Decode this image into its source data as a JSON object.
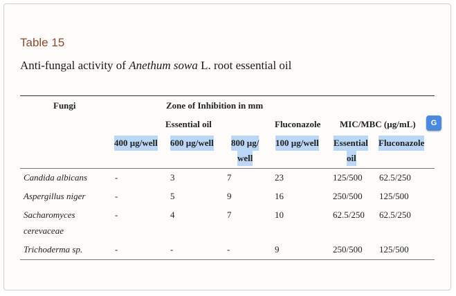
{
  "table": {
    "label": "Table 15",
    "caption_pre": "Anti-fungal activity of ",
    "caption_italic": "Anethum sowa",
    "caption_post": " L. root essential oil"
  },
  "headers": {
    "fungi": "Fungi",
    "zone": "Zone of Inhibition in mm",
    "essential_oil": "Essential oil",
    "fluconazole": "Fluconazole",
    "mic_mbc": "MIC/MBC (µg/mL)",
    "c400": "400 µg/well",
    "c600": "600 µg/well",
    "c800_line1": "800 µg/",
    "c800_line2": "well",
    "c100": "100 µg/well",
    "mic_eo_line1": "Essential",
    "mic_eo_line2": "oil",
    "mic_flu": "Fluconazole"
  },
  "rows": [
    {
      "fungi": "Candida albicans",
      "fungi2": "",
      "c400": "-",
      "c600": "3",
      "c800": "7",
      "c100": "23",
      "mic_eo": "125/500",
      "mic_flu": "62.5/250"
    },
    {
      "fungi": "Aspergillus niger",
      "fungi2": "",
      "c400": "-",
      "c600": "5",
      "c800": "9",
      "c100": "16",
      "mic_eo": "250/500",
      "mic_flu": "125/500"
    },
    {
      "fungi": "Sacharomyces",
      "fungi2": "cerevaceae",
      "c400": "-",
      "c600": "4",
      "c800": "7",
      "c100": "10",
      "mic_eo": "62.5/250",
      "mic_flu": "62.5/250"
    },
    {
      "fungi": "Trichoderma sp.",
      "fungi2": "",
      "c400": "-",
      "c600": "-",
      "c800": "-",
      "c100": "9",
      "mic_eo": "250/500",
      "mic_flu": "125/500"
    }
  ],
  "icons": {
    "translate": "translate-icon"
  },
  "translate_glyph": "G"
}
